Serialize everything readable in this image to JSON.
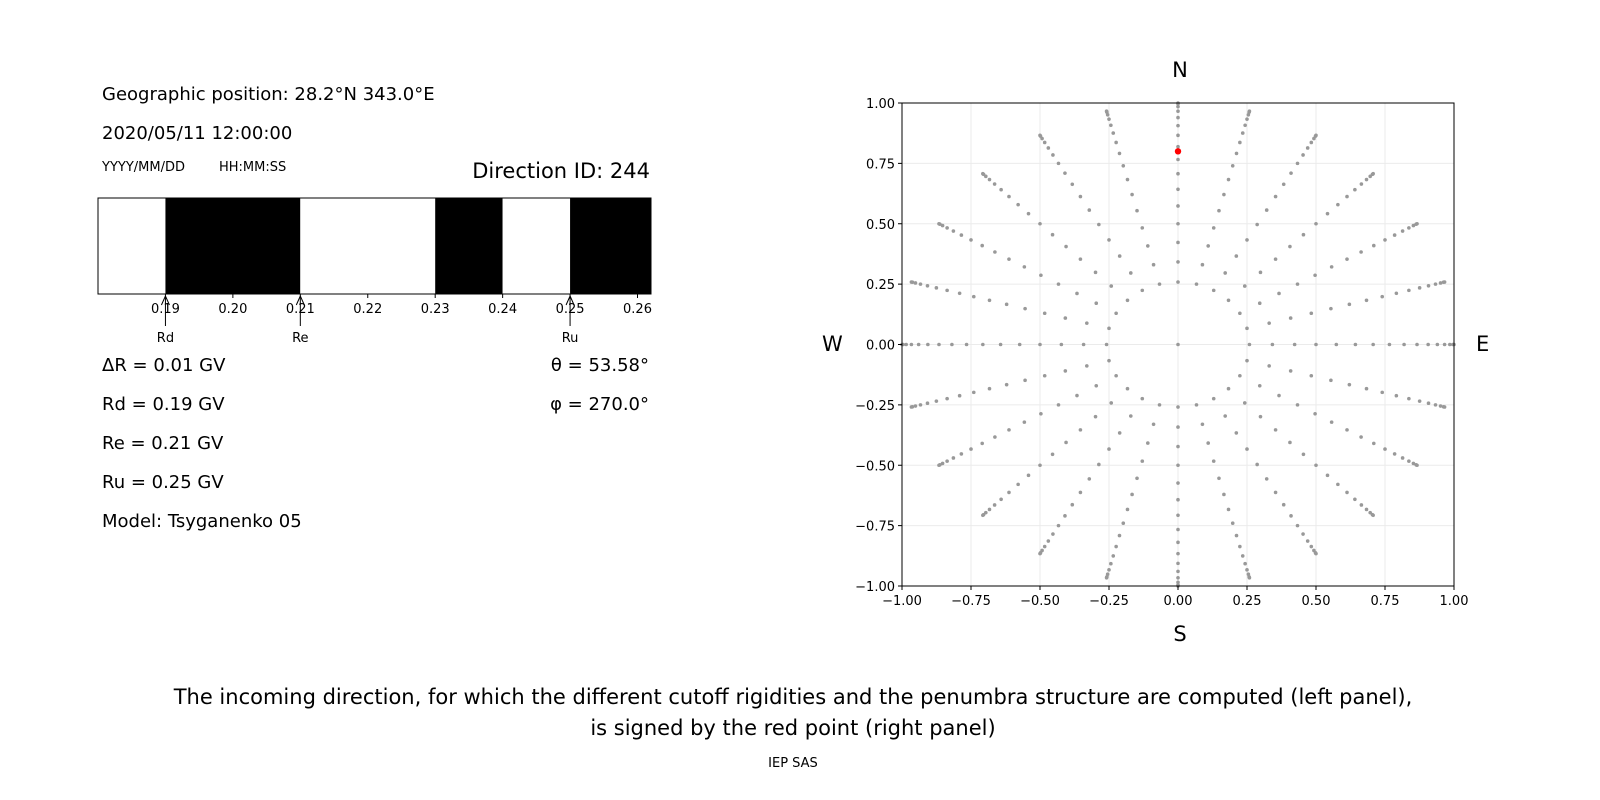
{
  "left_panel": {
    "geo_position": "Geographic position: 28.2°N 343.0°E",
    "datetime": "2020/05/11 12:00:00",
    "date_format": "YYYY/MM/DD",
    "time_format": "HH:MM:SS",
    "direction_id": "Direction ID: 244",
    "delta_r": "ΔR = 0.01 GV",
    "rd": "Rd = 0.19 GV",
    "re": "Re = 0.21 GV",
    "ru": "Ru = 0.25 GV",
    "model": "Model: Tsyganenko 05",
    "theta": "θ = 53.58°",
    "phi": "φ = 270.0°"
  },
  "right_panel": {
    "north": "N",
    "south": "S",
    "west": "W",
    "east": "E"
  },
  "caption": {
    "line1": "The incoming direction, for which the different cutoff rigidities and the penumbra structure are computed (left panel),",
    "line2": "is signed by the red point (right panel)",
    "credit": "IEP SAS"
  },
  "chart_data": [
    {
      "type": "bar",
      "subtype": "penumbra-strip",
      "xlim": [
        0.18,
        0.262
      ],
      "ticks": [
        0.19,
        0.2,
        0.21,
        0.22,
        0.23,
        0.24,
        0.25,
        0.26
      ],
      "tick_labels": [
        "0.19",
        "0.20",
        "0.21",
        "0.22",
        "0.23",
        "0.24",
        "0.25",
        "0.26"
      ],
      "segments": [
        {
          "from": 0.18,
          "to": 0.19,
          "state": "allowed",
          "color": "#ffffff"
        },
        {
          "from": 0.19,
          "to": 0.21,
          "state": "forbidden",
          "color": "#000000"
        },
        {
          "from": 0.21,
          "to": 0.23,
          "state": "allowed",
          "color": "#ffffff"
        },
        {
          "from": 0.23,
          "to": 0.24,
          "state": "forbidden",
          "color": "#000000"
        },
        {
          "from": 0.24,
          "to": 0.25,
          "state": "allowed",
          "color": "#ffffff"
        },
        {
          "from": 0.25,
          "to": 0.262,
          "state": "forbidden",
          "color": "#000000"
        }
      ],
      "markers": [
        {
          "label": "Rd",
          "value": 0.19
        },
        {
          "label": "Re",
          "value": 0.21
        },
        {
          "label": "Ru",
          "value": 0.25
        }
      ]
    },
    {
      "type": "scatter",
      "xlim": [
        -1.0,
        1.0
      ],
      "ylim": [
        -1.0,
        1.0
      ],
      "xticks": [
        -1.0,
        -0.75,
        -0.5,
        -0.25,
        0.0,
        0.25,
        0.5,
        0.75,
        1.0
      ],
      "yticks": [
        -1.0,
        -0.75,
        -0.5,
        -0.25,
        0.0,
        0.25,
        0.5,
        0.75,
        1.0
      ],
      "xtick_labels": [
        "−1.00",
        "−0.75",
        "−0.50",
        "−0.25",
        "0.00",
        "0.25",
        "0.50",
        "0.75",
        "1.00"
      ],
      "ytick_labels": [
        "−1.00",
        "−0.75",
        "−0.50",
        "−0.25",
        "0.00",
        "0.25",
        "0.50",
        "0.75",
        "1.00"
      ],
      "grid": true,
      "grid_points": {
        "zenith_step_deg": 5,
        "zenith_max_deg": 90,
        "rings_from_zenith_deg": 15,
        "azimuth_step_deg": 15,
        "radius_function": "sin(zenith)",
        "color": "#999999"
      },
      "highlight": {
        "x": 0.0,
        "y": 0.8,
        "color": "#ff0000"
      }
    }
  ]
}
